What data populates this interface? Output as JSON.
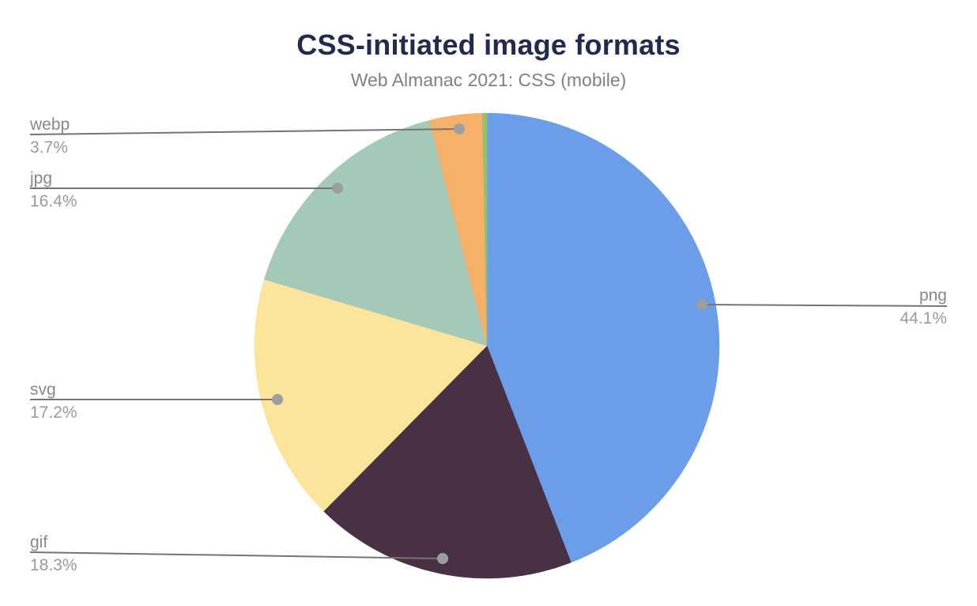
{
  "title": "CSS-initiated image formats",
  "subtitle": "Web Almanac 2021: CSS (mobile)",
  "colors": {
    "title_text": "#212B4F",
    "subtitle_text": "#7E8287",
    "label_text": "#85898D",
    "pct_text": "#9A9A9A",
    "leader_line": "#757575",
    "leader_dot": "#9E9E9E",
    "background": "#FFFFFF"
  },
  "chart_data": {
    "type": "pie",
    "title": "CSS-initiated image formats",
    "subtitle": "Web Almanac 2021: CSS (mobile)",
    "start_angle_deg": 0,
    "direction": "clockwise",
    "legend": "none",
    "label_style": "external callout lines with dots, name above line and percent below",
    "slices": [
      {
        "label": "png",
        "value": 44.1,
        "pct_text": "44.1%",
        "color": "#6C9DE9"
      },
      {
        "label": "gif",
        "value": 18.3,
        "pct_text": "18.3%",
        "color": "#483144"
      },
      {
        "label": "svg",
        "value": 17.2,
        "pct_text": "17.2%",
        "color": "#FDE49B"
      },
      {
        "label": "jpg",
        "value": 16.4,
        "pct_text": "16.4%",
        "color": "#A5C9B8"
      },
      {
        "label": "webp",
        "value": 3.7,
        "pct_text": "3.7%",
        "color": "#F5B069"
      },
      {
        "label": "",
        "value": 0.3,
        "pct_text": "",
        "color": "#8FC36A"
      }
    ]
  }
}
